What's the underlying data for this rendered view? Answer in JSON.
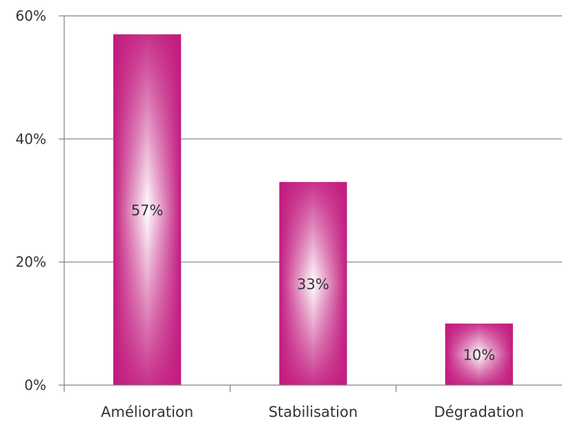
{
  "chart_data": {
    "type": "bar",
    "categories": [
      "Amélioration",
      "Stabilisation",
      "Dégradation"
    ],
    "values": [
      57,
      33,
      10
    ],
    "data_labels": [
      "57%",
      "33%",
      "10%"
    ],
    "y_ticks": [
      {
        "value": 0,
        "label": "0%"
      },
      {
        "value": 20,
        "label": "20%"
      },
      {
        "value": 40,
        "label": "40%"
      },
      {
        "value": 60,
        "label": "60%"
      }
    ],
    "ylim": [
      0,
      60
    ],
    "grid": true,
    "legend": "none",
    "colors": {
      "bar_edge": "#c21a7e",
      "bar_center": "#ffffff",
      "axis": "#808080",
      "grid": "#808080",
      "text": "#333333"
    }
  }
}
